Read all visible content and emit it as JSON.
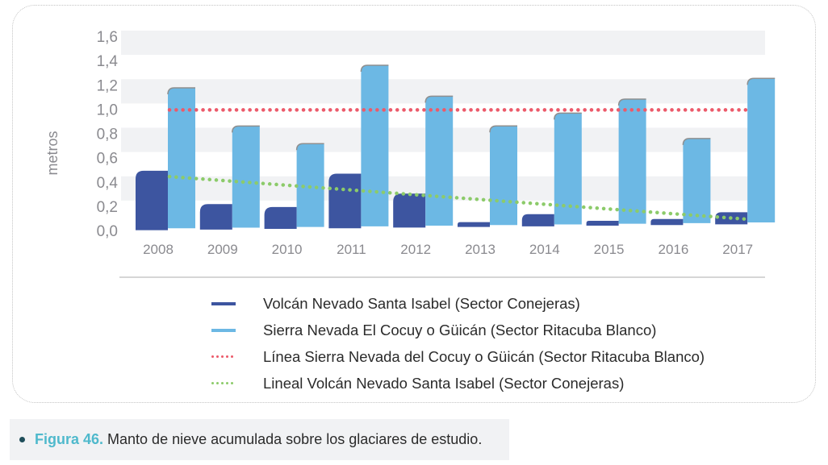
{
  "chart_data": {
    "type": "bar",
    "ylabel": "metros",
    "xlabel": "",
    "ylim": [
      0,
      1.6
    ],
    "yticks": [
      "0,0",
      "0,2",
      "0,4",
      "0,6",
      "0,8",
      "1,0",
      "1,2",
      "1,4",
      "1,6"
    ],
    "ytick_values": [
      0,
      0.2,
      0.4,
      0.6,
      0.8,
      1.0,
      1.2,
      1.4,
      1.6
    ],
    "categories": [
      "2008",
      "2009",
      "2010",
      "2011",
      "2012",
      "2013",
      "2014",
      "2015",
      "2016",
      "2017"
    ],
    "series": [
      {
        "name": "Volcán Nevado Santa Isabel (Sector Conejeras)",
        "kind": "bar",
        "color": "#3d55a0",
        "values": [
          0.49,
          0.21,
          0.18,
          0.45,
          0.28,
          0.04,
          0.1,
          0.04,
          0.05,
          0.1
        ]
      },
      {
        "name": "Sierra Nevada El Cocuy o Güicán (Sector Ritacuba Blanco)",
        "kind": "bar",
        "color": "#6cb8e4",
        "values": [
          1.17,
          0.85,
          0.7,
          1.34,
          1.08,
          0.83,
          0.93,
          1.04,
          0.71,
          1.2
        ]
      },
      {
        "name": "Línea Sierra Nevada del Cocuy o Güicán (Sector Ritacuba Blanco)",
        "kind": "dotted-line",
        "color": "#ec5a6a",
        "values": [
          1.0,
          1.0,
          1.0,
          1.0,
          1.0,
          1.0,
          1.0,
          1.0,
          1.0,
          1.0
        ]
      },
      {
        "name": "Lineal Volcán Nevado Santa Isabel (Sector Conejeras)",
        "kind": "dotted-line",
        "color": "#8ccb6a",
        "values": [
          0.44,
          0.39,
          0.35,
          0.3,
          0.26,
          0.21,
          0.17,
          0.12,
          0.08,
          0.04
        ]
      }
    ],
    "grid": "alternating-bands",
    "legend_position": "bottom"
  },
  "caption": {
    "prefix": "Figura 46.",
    "text": "Manto de nieve acumulada sobre los glaciares de estudio.",
    "prefix_color": "#4fb9cc"
  }
}
